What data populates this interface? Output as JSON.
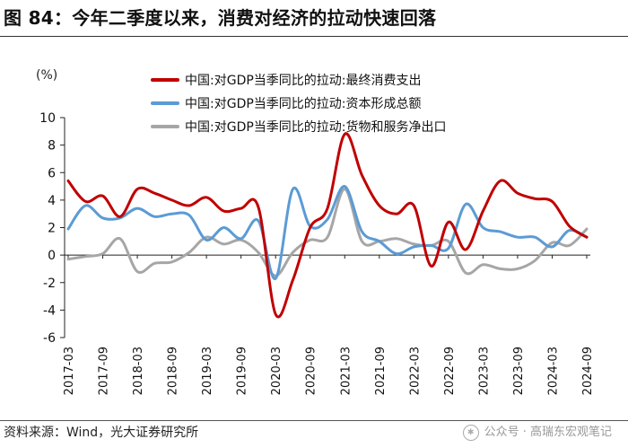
{
  "figure_title": "图 84：今年二季度以来，消费对经济的拉动快速回落",
  "source": "资料来源：Wind，光大证券研究所",
  "watermark": "公众号 · 高瑞东宏观笔记",
  "chart_data": {
    "type": "line",
    "ylabel": "(%)",
    "ylim": [
      -6,
      10
    ],
    "yticks": [
      10,
      8,
      6,
      4,
      2,
      0,
      -2,
      -4,
      -6
    ],
    "grid": false,
    "legend_position": "top-right",
    "x": [
      "2017-03",
      "2017-06",
      "2017-09",
      "2017-12",
      "2018-03",
      "2018-06",
      "2018-09",
      "2018-12",
      "2019-03",
      "2019-06",
      "2019-09",
      "2019-12",
      "2020-03",
      "2020-06",
      "2020-09",
      "2020-12",
      "2021-03",
      "2021-06",
      "2021-09",
      "2021-12",
      "2022-03",
      "2022-06",
      "2022-09",
      "2022-12",
      "2023-03",
      "2023-06",
      "2023-09",
      "2023-12",
      "2024-03",
      "2024-06",
      "2024-09"
    ],
    "xticks": [
      "2017-03",
      "2017-09",
      "2018-03",
      "2018-09",
      "2019-03",
      "2019-09",
      "2020-03",
      "2020-09",
      "2021-03",
      "2021-09",
      "2022-03",
      "2022-09",
      "2023-03",
      "2023-09",
      "2024-03",
      "2024-09"
    ],
    "series": [
      {
        "name": "中国:对GDP当季同比的拉动:最终消费支出",
        "color": "#c00000",
        "values": [
          5.4,
          3.9,
          4.3,
          2.8,
          4.8,
          4.5,
          4.0,
          3.6,
          4.2,
          3.2,
          3.4,
          3.5,
          -4.3,
          -1.8,
          2.0,
          3.4,
          8.8,
          5.8,
          3.6,
          3.0,
          3.6,
          -0.8,
          2.4,
          0.4,
          3.2,
          5.4,
          4.5,
          4.1,
          3.9,
          2.1,
          1.3
        ]
      },
      {
        "name": "中国:对GDP当季同比的拉动:资本形成总额",
        "color": "#5b9bd5",
        "values": [
          1.9,
          3.6,
          2.7,
          2.7,
          3.4,
          2.8,
          3.0,
          2.9,
          1.1,
          2.0,
          1.2,
          2.5,
          -1.7,
          4.8,
          2.1,
          2.6,
          5.0,
          1.7,
          1.0,
          0.1,
          0.6,
          0.7,
          0.5,
          3.7,
          2.0,
          1.7,
          1.3,
          1.3,
          0.6,
          1.8,
          1.3
        ]
      },
      {
        "name": "中国:对GDP当季同比的拉动:货物和服务净出口",
        "color": "#a6a6a6",
        "values": [
          -0.3,
          -0.1,
          0.1,
          1.2,
          -1.2,
          -0.6,
          -0.5,
          0.2,
          1.3,
          0.8,
          1.1,
          0.2,
          -1.5,
          0.2,
          1.1,
          1.3,
          4.8,
          1.0,
          1.0,
          1.2,
          0.8,
          0.7,
          1.0,
          -1.3,
          -0.7,
          -1.0,
          -1.0,
          -0.4,
          0.9,
          0.7,
          1.9
        ]
      }
    ]
  }
}
